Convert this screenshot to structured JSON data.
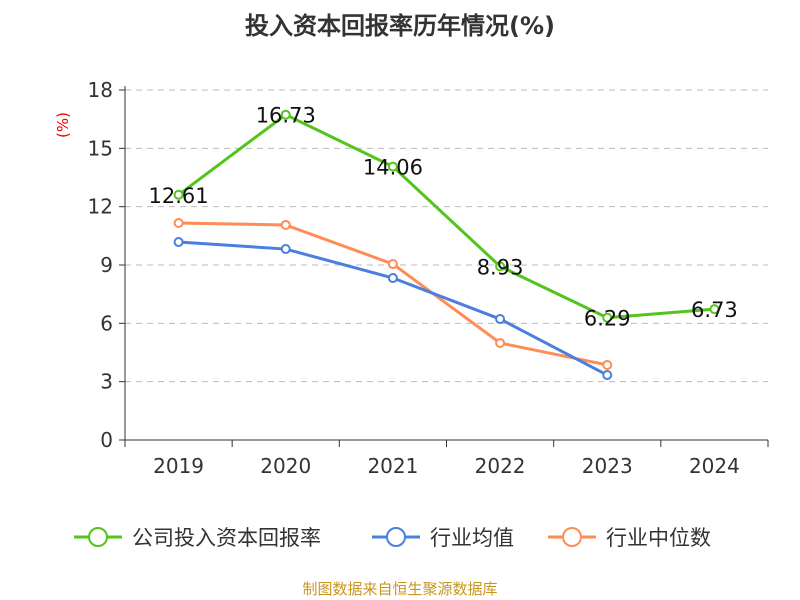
{
  "chart_data": {
    "type": "line",
    "title": "投入资本回报率历年情况(%)",
    "ylabel": "(%)",
    "xlabel": "",
    "categories": [
      "2019",
      "2020",
      "2021",
      "2022",
      "2023",
      "2024"
    ],
    "ylim": [
      0,
      18
    ],
    "yticks": [
      0,
      3,
      6,
      9,
      12,
      15,
      18
    ],
    "grid": true,
    "legend_position": "bottom",
    "series": [
      {
        "name": "公司投入资本回报率",
        "color": "#52c41a",
        "values": [
          12.61,
          16.73,
          14.06,
          8.93,
          6.29,
          6.73
        ],
        "labels": [
          "12.61",
          "16.73",
          "14.06",
          "8.93",
          "6.29",
          "6.73"
        ]
      },
      {
        "name": "行业均值",
        "color": "#4a7fe0",
        "values": [
          10.18,
          9.82,
          8.33,
          6.22,
          3.34,
          null
        ]
      },
      {
        "name": "行业中位数",
        "color": "#ff8c55",
        "values": [
          11.16,
          11.06,
          9.05,
          4.99,
          3.86,
          null
        ]
      }
    ]
  },
  "source": "制图数据来自恒生聚源数据库"
}
